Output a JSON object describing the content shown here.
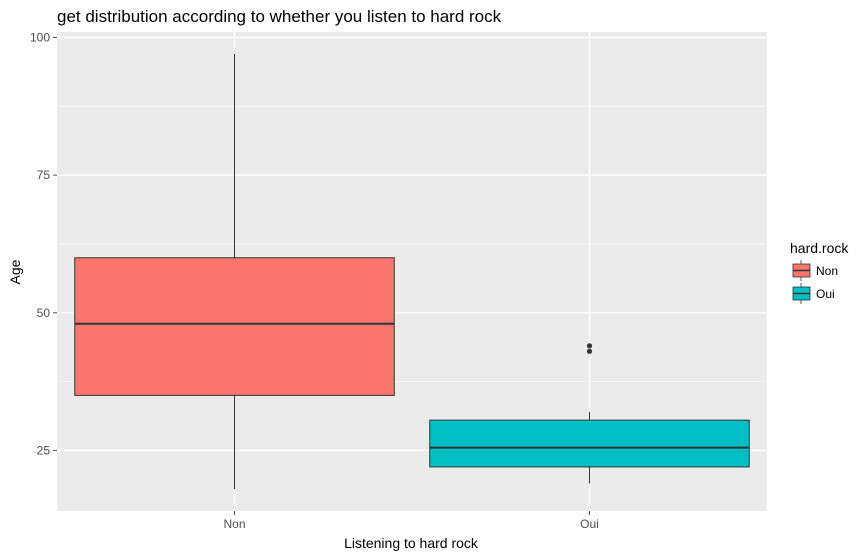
{
  "chart_data": {
    "type": "boxplot",
    "title": "get distribution according to whether you listen to hard rock",
    "xlabel": "Listening to hard rock",
    "ylabel": "Age",
    "categories": [
      "Non",
      "Oui"
    ],
    "ylim": [
      14,
      101
    ],
    "yticks": [
      25,
      50,
      75,
      100
    ],
    "grid": true,
    "legend": {
      "title": "hard.rock",
      "position": "right",
      "entries": [
        {
          "label": "Non",
          "color": "#F8766D"
        },
        {
          "label": "Oui",
          "color": "#00BFC4"
        }
      ]
    },
    "boxes": [
      {
        "category": "Non",
        "whisker_low": 18,
        "q1": 35,
        "median": 48,
        "q3": 60,
        "whisker_high": 97,
        "outliers": [],
        "color": "#F8766D"
      },
      {
        "category": "Oui",
        "whisker_low": 19,
        "q1": 22,
        "median": 25.5,
        "q3": 30.5,
        "whisker_high": 32,
        "outliers": [
          43,
          44
        ],
        "color": "#00BFC4"
      }
    ],
    "colors": {
      "panel": "#EBEBEB",
      "grid_major": "#FFFFFF",
      "tick": "#4d4d4d",
      "box_outline": "#333333"
    }
  }
}
